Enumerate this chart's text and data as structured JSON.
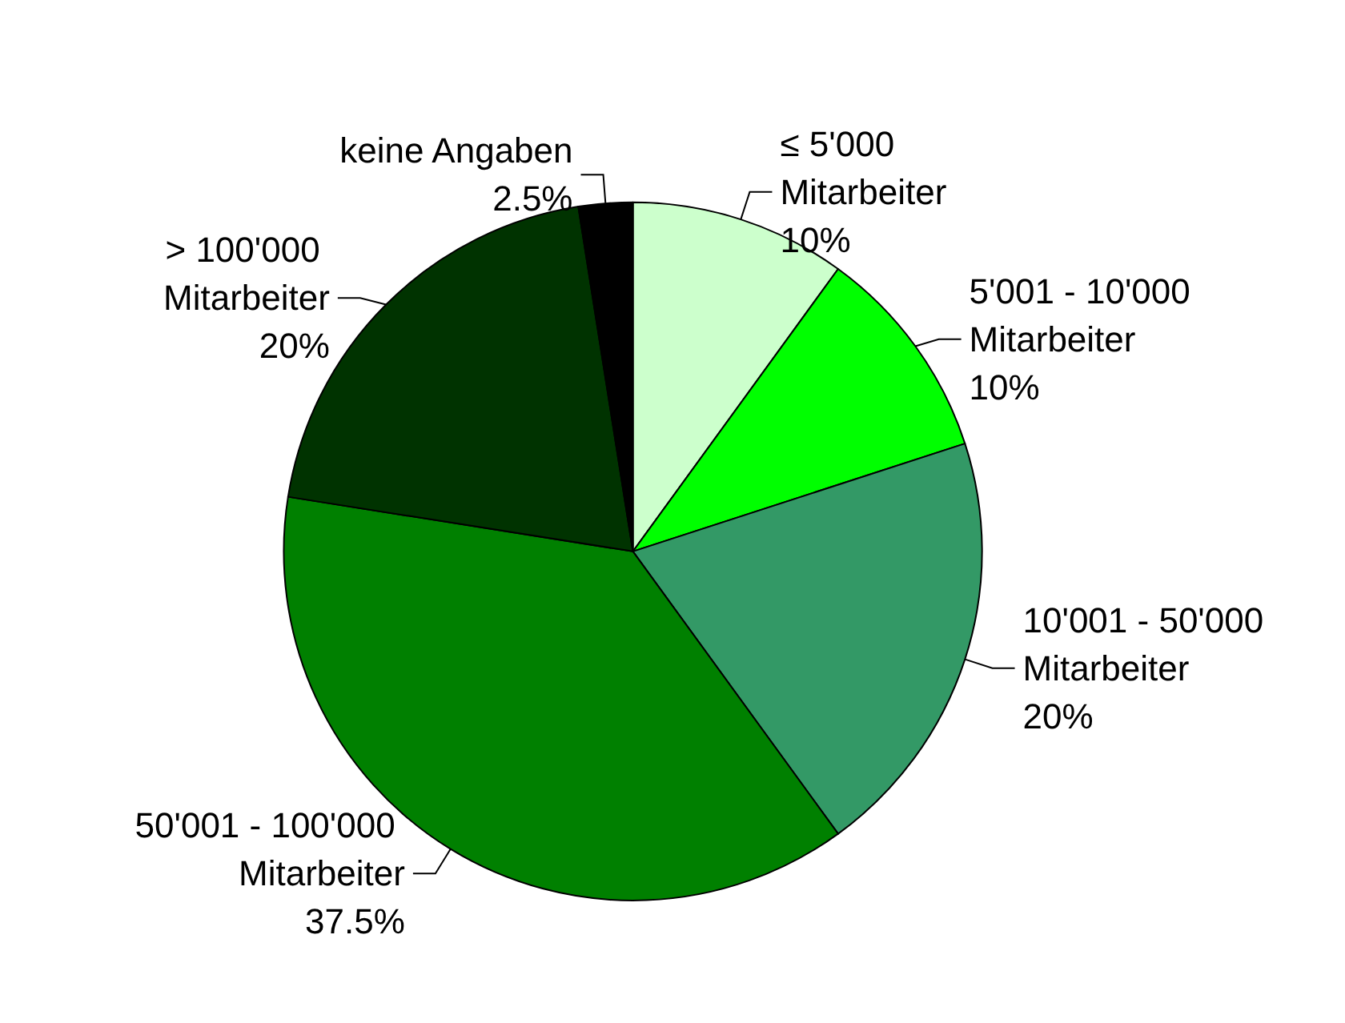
{
  "chart_data": {
    "type": "pie",
    "categories": [
      "≤ 5'000 Mitarbeiter",
      "5'001 - 10'000 Mitarbeiter",
      "10'001 - 50'000 Mitarbeiter",
      "50'001 - 100'000 Mitarbeiter",
      "> 100'000 Mitarbeiter",
      "keine Angaben"
    ],
    "values": [
      10,
      10,
      20,
      37.5,
      20,
      2.5
    ],
    "value_labels": [
      "10%",
      "10%",
      "20%",
      "37.5%",
      "20%",
      "2.5%"
    ],
    "colors": [
      "#ccffcc",
      "#00ff00",
      "#339966",
      "#008000",
      "#003300",
      "#000000"
    ],
    "legend": false
  }
}
